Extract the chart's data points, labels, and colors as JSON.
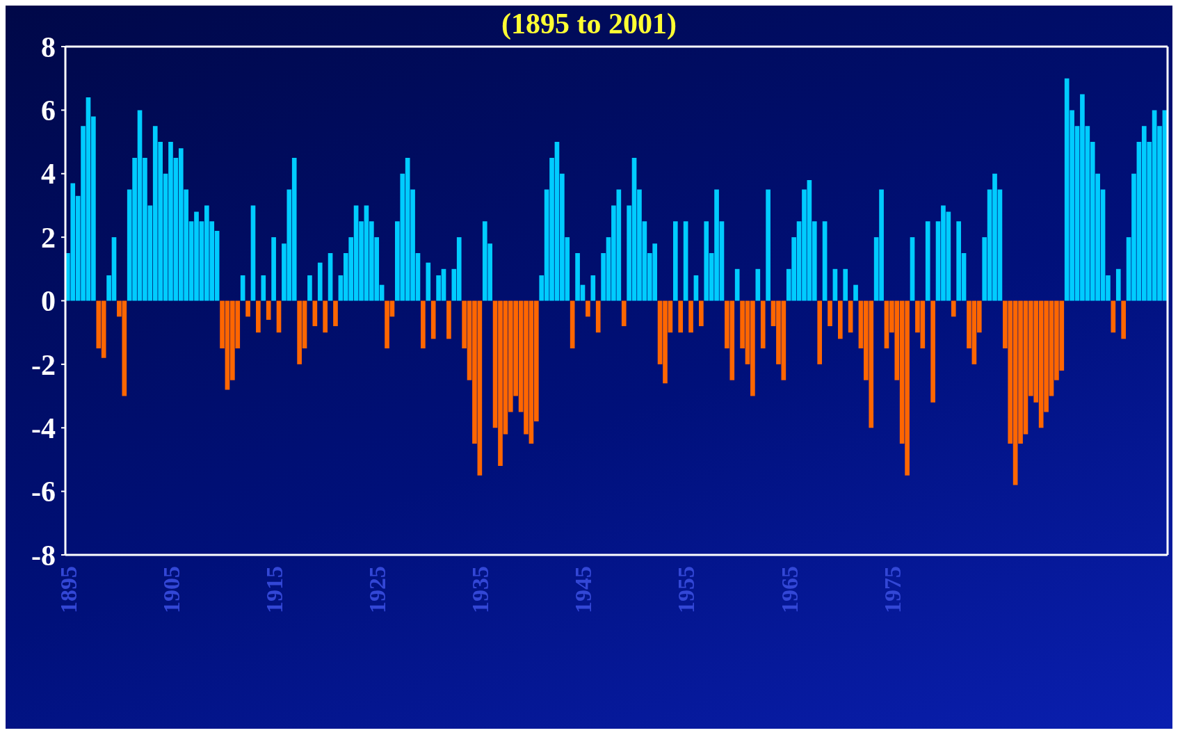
{
  "chart_data": {
    "type": "bar",
    "title": "(1895 to 2001)",
    "x": [
      1895,
      1895.5,
      1896,
      1896.5,
      1897,
      1897.5,
      1898,
      1898.5,
      1899,
      1899.5,
      1900,
      1900.5,
      1901,
      1901.5,
      1902,
      1902.5,
      1903,
      1903.5,
      1904,
      1904.5,
      1905,
      1905.5,
      1906,
      1906.5,
      1907,
      1907.5,
      1908,
      1908.5,
      1909,
      1909.5,
      1910,
      1910.5,
      1911,
      1911.5,
      1912,
      1912.5,
      1913,
      1913.5,
      1914,
      1914.5,
      1915,
      1915.5,
      1916,
      1916.5,
      1917,
      1917.5,
      1918,
      1918.5,
      1919,
      1919.5,
      1920,
      1920.5,
      1921,
      1921.5,
      1922,
      1922.5,
      1923,
      1923.5,
      1924,
      1924.5,
      1925,
      1925.5,
      1926,
      1926.5,
      1927,
      1927.5,
      1928,
      1928.5,
      1929,
      1929.5,
      1930,
      1930.5,
      1931,
      1931.5,
      1932,
      1932.5,
      1933,
      1933.5,
      1934,
      1934.5,
      1935,
      1935.5,
      1936,
      1936.5,
      1937,
      1937.5,
      1938,
      1938.5,
      1939,
      1939.5,
      1940,
      1940.5,
      1941,
      1941.5,
      1942,
      1942.5,
      1943,
      1943.5,
      1944,
      1944.5,
      1945,
      1945.5,
      1946,
      1946.5,
      1947,
      1947.5,
      1948,
      1948.5,
      1949,
      1949.5,
      1950,
      1950.5,
      1951,
      1951.5,
      1952,
      1952.5,
      1953,
      1953.5,
      1954,
      1954.5,
      1955,
      1955.5,
      1956,
      1956.5,
      1957,
      1957.5,
      1958,
      1958.5,
      1959,
      1959.5,
      1960,
      1960.5,
      1961,
      1961.5,
      1962,
      1962.5,
      1963,
      1963.5,
      1964,
      1964.5,
      1965,
      1965.5,
      1966,
      1966.5,
      1967,
      1967.5,
      1968,
      1968.5,
      1969,
      1969.5,
      1970,
      1970.5,
      1971,
      1971.5,
      1972,
      1972.5,
      1973,
      1973.5,
      1974,
      1974.5,
      1975,
      1975.5,
      1976,
      1976.5,
      1977,
      1977.5,
      1978,
      1978.5,
      1979,
      1979.5,
      1980,
      1980.5,
      1981,
      1981.5,
      1982,
      1982.5,
      1983,
      1983.5,
      1984,
      1984.5,
      1985,
      1985.5,
      1986,
      1986.5,
      1987,
      1987.5,
      1988,
      1988.5,
      1989,
      1989.5,
      1990,
      1990.5,
      1991,
      1991.5,
      1992,
      1992.5,
      1993,
      1993.5,
      1994,
      1994.5,
      1995,
      1995.5,
      1996,
      1996.5,
      1997,
      1997.5,
      1998,
      1998.5,
      1999,
      1999.5,
      2000,
      2000.5,
      2001,
      2001.5
    ],
    "values": [
      1.5,
      3.7,
      3.3,
      5.5,
      6.4,
      5.8,
      -1.5,
      -1.8,
      0.8,
      2.0,
      -0.5,
      -3.0,
      3.5,
      4.5,
      6.0,
      4.5,
      3.0,
      5.5,
      5.0,
      4.0,
      5.0,
      4.5,
      4.8,
      3.5,
      2.5,
      2.8,
      2.5,
      3.0,
      2.5,
      2.2,
      -1.5,
      -2.8,
      -2.5,
      -1.5,
      0.8,
      -0.5,
      3.0,
      -1.0,
      0.8,
      -0.6,
      2.0,
      -1.0,
      1.8,
      3.5,
      4.5,
      -2.0,
      -1.5,
      0.8,
      -0.8,
      1.2,
      -1.0,
      1.5,
      -0.8,
      0.8,
      1.5,
      2.0,
      3.0,
      2.5,
      3.0,
      2.5,
      2.0,
      0.5,
      -1.5,
      -0.5,
      2.5,
      4.0,
      4.5,
      3.5,
      1.5,
      -1.5,
      1.2,
      -1.2,
      0.8,
      1.0,
      -1.2,
      1.0,
      2.0,
      -1.5,
      -2.5,
      -4.5,
      -5.5,
      2.5,
      1.8,
      -4.0,
      -5.2,
      -4.2,
      -3.5,
      -3.0,
      -3.5,
      -4.2,
      -4.5,
      -3.8,
      0.8,
      3.5,
      4.5,
      5.0,
      4.0,
      2.0,
      -1.5,
      1.5,
      0.5,
      -0.5,
      0.8,
      -1.0,
      1.5,
      2.0,
      3.0,
      3.5,
      -0.8,
      3.0,
      4.5,
      3.5,
      2.5,
      1.5,
      1.8,
      -2.0,
      -2.6,
      -1.0,
      2.5,
      -1.0,
      2.5,
      -1.0,
      0.8,
      -0.8,
      2.5,
      1.5,
      3.5,
      2.5,
      -1.5,
      -2.5,
      1.0,
      -1.5,
      -2.0,
      -3.0,
      1.0,
      -1.5,
      3.5,
      -0.8,
      -2.0,
      -2.5,
      1.0,
      2.0,
      2.5,
      3.5,
      3.8,
      2.5,
      -2.0,
      2.5,
      -0.8,
      1.0,
      -1.2,
      1.0,
      -1.0,
      0.5,
      -1.5,
      -2.5,
      -4.0,
      2.0,
      3.5,
      -1.5,
      -1.0,
      -2.5,
      -4.5,
      -5.5,
      2.0,
      -1.0,
      -1.5,
      2.5,
      -3.2,
      2.5,
      3.0,
      2.8,
      -0.5,
      2.5,
      1.5,
      -1.5,
      -2.0,
      -1.0,
      2.0,
      3.5,
      4.0,
      3.5,
      -1.5,
      -4.5,
      -5.8,
      -4.5,
      -4.2,
      -3.0,
      -3.2,
      -4.0,
      -3.5,
      -3.0,
      -2.5,
      -2.2,
      7.0,
      6.0,
      5.5,
      6.5,
      5.5,
      5.0,
      4.0,
      3.5,
      0.8,
      -1.0,
      1.0,
      -1.2,
      2.0,
      4.0,
      5.0,
      5.5,
      5.0,
      6.0,
      5.5,
      6.0
    ],
    "colors": [
      "#00ccff",
      "#00ccff",
      "#00ccff",
      "#00ccff",
      "#00ccff",
      "#00ccff",
      "#ff6600",
      "#ff6600",
      "#00ccff",
      "#00ccff",
      "#ff6600",
      "#ff6600",
      "#00ccff",
      "#00ccff",
      "#00ccff",
      "#00ccff",
      "#00ccff",
      "#00ccff",
      "#00ccff",
      "#00ccff",
      "#00ccff",
      "#00ccff",
      "#00ccff",
      "#00ccff",
      "#00ccff",
      "#00ccff",
      "#00ccff",
      "#00ccff",
      "#00ccff",
      "#00ccff",
      "#ff6600",
      "#ff6600",
      "#ff6600",
      "#ff6600",
      "#00ccff",
      "#ff6600",
      "#00ccff",
      "#ff6600",
      "#00ccff",
      "#ff6600",
      "#00ccff",
      "#ff6600",
      "#00ccff",
      "#00ccff",
      "#00ccff",
      "#ff6600",
      "#ff6600",
      "#00ccff",
      "#ff6600",
      "#00ccff",
      "#ff6600",
      "#00ccff",
      "#ff6600",
      "#00ccff",
      "#00ccff",
      "#00ccff",
      "#00ccff",
      "#00ccff",
      "#00ccff",
      "#00ccff",
      "#00ccff",
      "#00ccff",
      "#ff6600",
      "#ff6600",
      "#00ccff",
      "#00ccff",
      "#00ccff",
      "#00ccff",
      "#00ccff",
      "#ff6600",
      "#00ccff",
      "#ff6600",
      "#00ccff",
      "#00ccff",
      "#ff6600",
      "#00ccff",
      "#00ccff",
      "#ff6600",
      "#ff6600",
      "#ff6600",
      "#ff6600",
      "#00ccff",
      "#00ccff",
      "#ff6600",
      "#ff6600",
      "#ff6600",
      "#ff6600",
      "#ff6600",
      "#ff6600",
      "#ff6600",
      "#ff6600",
      "#ff6600",
      "#00ccff",
      "#00ccff",
      "#00ccff",
      "#00ccff",
      "#00ccff",
      "#00ccff",
      "#ff6600",
      "#00ccff",
      "#00ccff",
      "#ff6600",
      "#00ccff",
      "#ff6600",
      "#00ccff",
      "#00ccff",
      "#00ccff",
      "#00ccff",
      "#ff6600",
      "#00ccff",
      "#00ccff",
      "#00ccff",
      "#00ccff",
      "#00ccff",
      "#00ccff",
      "#ff6600",
      "#ff6600",
      "#ff6600",
      "#00ccff",
      "#ff6600",
      "#00ccff",
      "#ff6600",
      "#00ccff",
      "#ff6600",
      "#00ccff",
      "#00ccff",
      "#00ccff",
      "#00ccff",
      "#ff6600",
      "#ff6600",
      "#00ccff",
      "#ff6600",
      "#ff6600",
      "#ff6600",
      "#00ccff",
      "#ff6600",
      "#00ccff",
      "#ff6600",
      "#ff6600",
      "#ff6600",
      "#00ccff",
      "#00ccff",
      "#00ccff",
      "#00ccff",
      "#00ccff",
      "#00ccff",
      "#ff6600",
      "#00ccff",
      "#ff6600",
      "#00ccff",
      "#ff6600",
      "#00ccff",
      "#ff6600",
      "#00ccff",
      "#ff6600",
      "#ff6600",
      "#ff6600",
      "#00ccff",
      "#00ccff",
      "#ff6600",
      "#ff6600",
      "#ff6600",
      "#ff6600",
      "#ff6600",
      "#00ccff",
      "#ff6600",
      "#ff6600",
      "#00ccff",
      "#ff6600",
      "#00ccff",
      "#00ccff",
      "#00ccff",
      "#ff6600",
      "#00ccff",
      "#00ccff",
      "#ff6600",
      "#ff6600",
      "#ff6600",
      "#00ccff",
      "#00ccff",
      "#00ccff",
      "#00ccff",
      "#ff6600",
      "#ff6600",
      "#ff6600",
      "#ff6600",
      "#ff6600",
      "#ff6600",
      "#ff6600",
      "#ff6600",
      "#ff6600",
      "#ff6600",
      "#ff6600",
      "#ff6600",
      "#00ccff",
      "#00ccff",
      "#00ccff",
      "#00ccff",
      "#00ccff",
      "#00ccff",
      "#00ccff",
      "#00ccff",
      "#00ccff",
      "#ff6600",
      "#00ccff",
      "#ff6600",
      "#00ccff",
      "#00ccff",
      "#00ccff",
      "#00ccff",
      "#00ccff",
      "#00ccff",
      "#00ccff",
      "#00ccff"
    ],
    "xlim": [
      1894.75,
      2001.75
    ],
    "xticks": [
      1895,
      1905,
      1915,
      1925,
      1935,
      1945,
      1955,
      1965,
      1975
    ],
    "ylim": [
      -8,
      8
    ],
    "yticks": [
      -8,
      -6,
      -4,
      -2,
      0,
      2,
      4,
      6,
      8
    ]
  }
}
